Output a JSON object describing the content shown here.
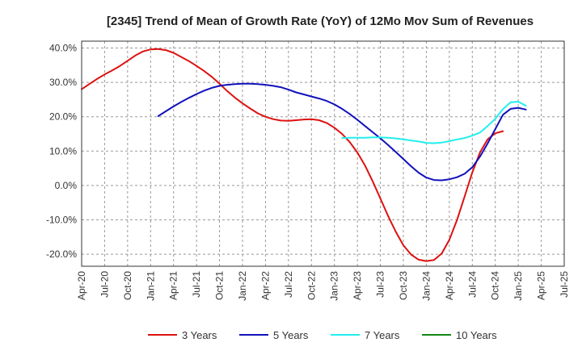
{
  "chart_data": {
    "type": "line",
    "title": "[2345]  Trend of Mean of Growth Rate (YoY) of 12Mo Mov Sum of Revenues",
    "xlabel": "",
    "ylabel": "",
    "ylim": [
      -23.5,
      42
    ],
    "yticks": [
      40,
      30,
      20,
      10,
      0,
      -10,
      -20
    ],
    "ytick_labels": [
      "40.0%",
      "30.0%",
      "20.0%",
      "10.0%",
      "0.0%",
      "-10.0%",
      "-20.0%"
    ],
    "x_start_index": 0,
    "x_end_index": 63,
    "xtick_labels": [
      "Apr-20",
      "Jul-20",
      "Oct-20",
      "Jan-21",
      "Apr-21",
      "Jul-21",
      "Oct-21",
      "Jan-22",
      "Apr-22",
      "Jul-22",
      "Oct-22",
      "Jan-23",
      "Apr-23",
      "Jul-23",
      "Oct-23",
      "Jan-24",
      "Apr-24",
      "Jul-24",
      "Oct-24",
      "Jan-25",
      "Apr-25",
      "Jul-25"
    ],
    "grid": true,
    "legend_position": "bottom",
    "series": [
      {
        "name": "3 Years",
        "color": "#dd1111",
        "start_index": 0,
        "values": [
          28,
          29.5,
          31,
          32.3,
          33.5,
          34.8,
          36.3,
          37.8,
          39,
          39.6,
          39.7,
          39.4,
          38.6,
          37.4,
          36.2,
          34.8,
          33.3,
          31.6,
          29.6,
          27.5,
          25.6,
          23.9,
          22.4,
          21,
          20,
          19.3,
          18.9,
          18.8,
          19,
          19.2,
          19.3,
          19,
          18.2,
          16.8,
          15,
          12.6,
          9.6,
          5.8,
          1.2,
          -3.8,
          -8.8,
          -13.4,
          -17.4,
          -20.1,
          -21.6,
          -22,
          -21.7,
          -19.8,
          -15.8,
          -10.1,
          -3.2,
          3.8,
          9.6,
          13.4,
          15.2,
          15.8
        ]
      },
      {
        "name": "5 Years",
        "color": "#1111bb",
        "start_index": 10,
        "values": [
          20.2,
          21.6,
          23,
          24.3,
          25.5,
          26.6,
          27.6,
          28.4,
          29,
          29.3,
          29.5,
          29.6,
          29.6,
          29.5,
          29.3,
          29,
          28.6,
          27.9,
          27.1,
          26.5,
          25.9,
          25.3,
          24.6,
          23.6,
          22.3,
          20.8,
          19.1,
          17.3,
          15.5,
          13.7,
          11.8,
          9.8,
          7.7,
          5.6,
          3.7,
          2.3,
          1.6,
          1.5,
          1.8,
          2.4,
          3.4,
          5.3,
          8.4,
          12.2,
          16.4,
          20.6,
          22.3,
          22.6,
          22.1
        ]
      },
      {
        "name": "7 Years",
        "color": "#22eeee",
        "start_index": 34,
        "values": [
          13.8,
          13.9,
          13.9,
          13.9,
          14,
          14,
          13.9,
          13.7,
          13.4,
          13.1,
          12.8,
          12.4,
          12.3,
          12.5,
          12.9,
          13.4,
          13.8,
          14.5,
          15.4,
          17.3,
          19.4,
          22.2,
          24.2,
          24.4,
          23.2
        ]
      },
      {
        "name": "10 Years",
        "color": "#118811",
        "start_index": 0,
        "values": []
      }
    ]
  }
}
